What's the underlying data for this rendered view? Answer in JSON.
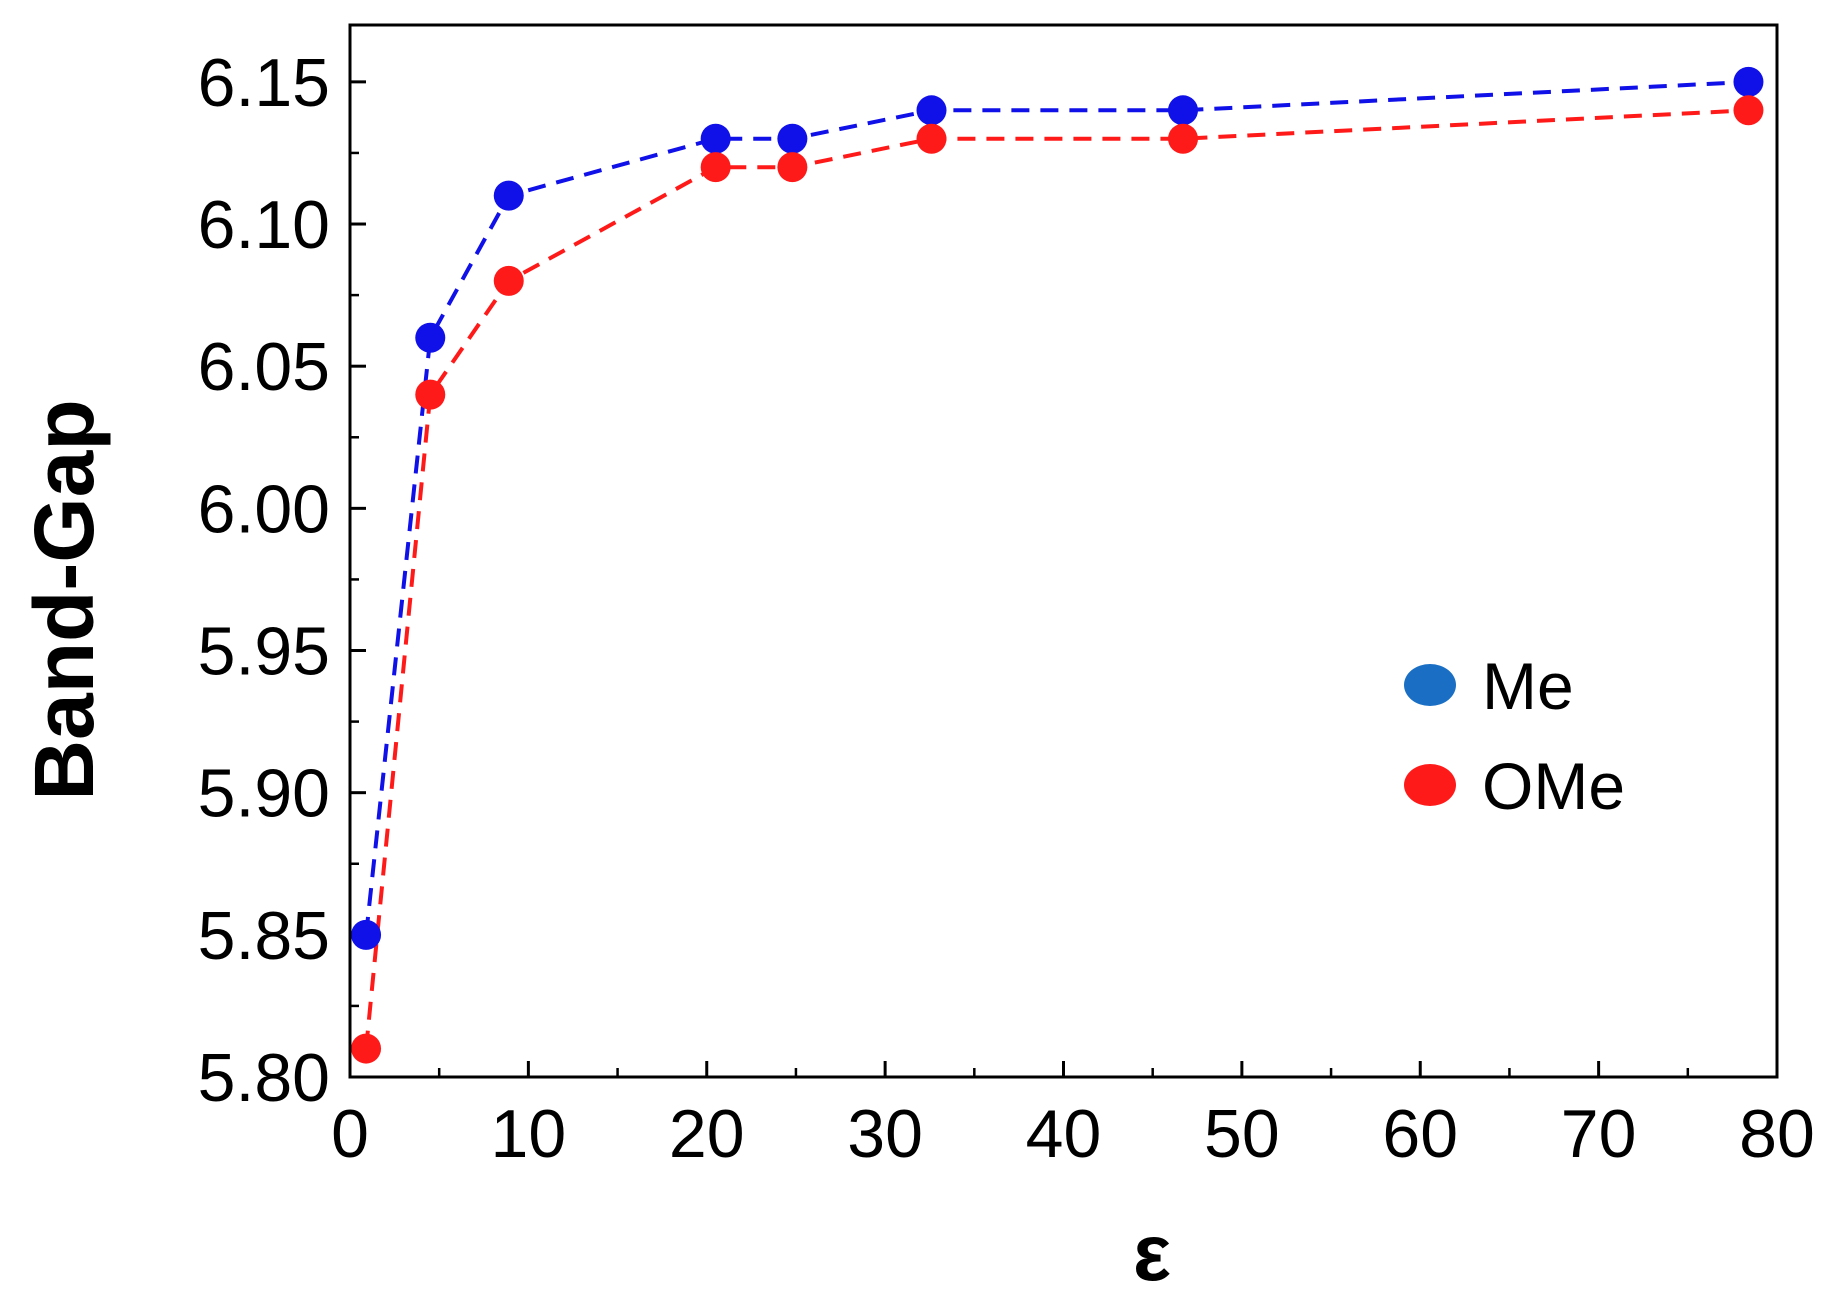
{
  "chart_data": {
    "type": "line",
    "title": "",
    "xlabel": "ε",
    "ylabel": "Band-Gap",
    "xlim": [
      0,
      80
    ],
    "ylim": [
      5.8,
      6.17
    ],
    "xticks": [
      0,
      10,
      20,
      30,
      40,
      50,
      60,
      70,
      80
    ],
    "xtick_labels": [
      "0",
      "10",
      "20",
      "30",
      "40",
      "50",
      "60",
      "70",
      "80"
    ],
    "yticks": [
      5.8,
      5.85,
      5.9,
      5.95,
      6.0,
      6.05,
      6.1,
      6.15
    ],
    "ytick_labels": [
      "5.80",
      "5.85",
      "5.90",
      "5.95",
      "6.00",
      "6.05",
      "6.10",
      "6.15"
    ],
    "grid": false,
    "legend_position": "right-center",
    "x": [
      0.9,
      4.5,
      8.9,
      20.5,
      24.8,
      32.6,
      46.7,
      78.4
    ],
    "series": [
      {
        "name": "Me",
        "legend_color": "#1a6fc4",
        "color": "#1010e8",
        "line_style": "dashed",
        "values": [
          5.85,
          6.06,
          6.11,
          6.13,
          6.13,
          6.14,
          6.14,
          6.15
        ]
      },
      {
        "name": "OMe",
        "legend_color": "#ff1a1a",
        "color": "#ff1a1a",
        "line_style": "dashed",
        "values": [
          5.81,
          6.04,
          6.08,
          6.12,
          6.12,
          6.13,
          6.13,
          6.14
        ]
      }
    ]
  }
}
